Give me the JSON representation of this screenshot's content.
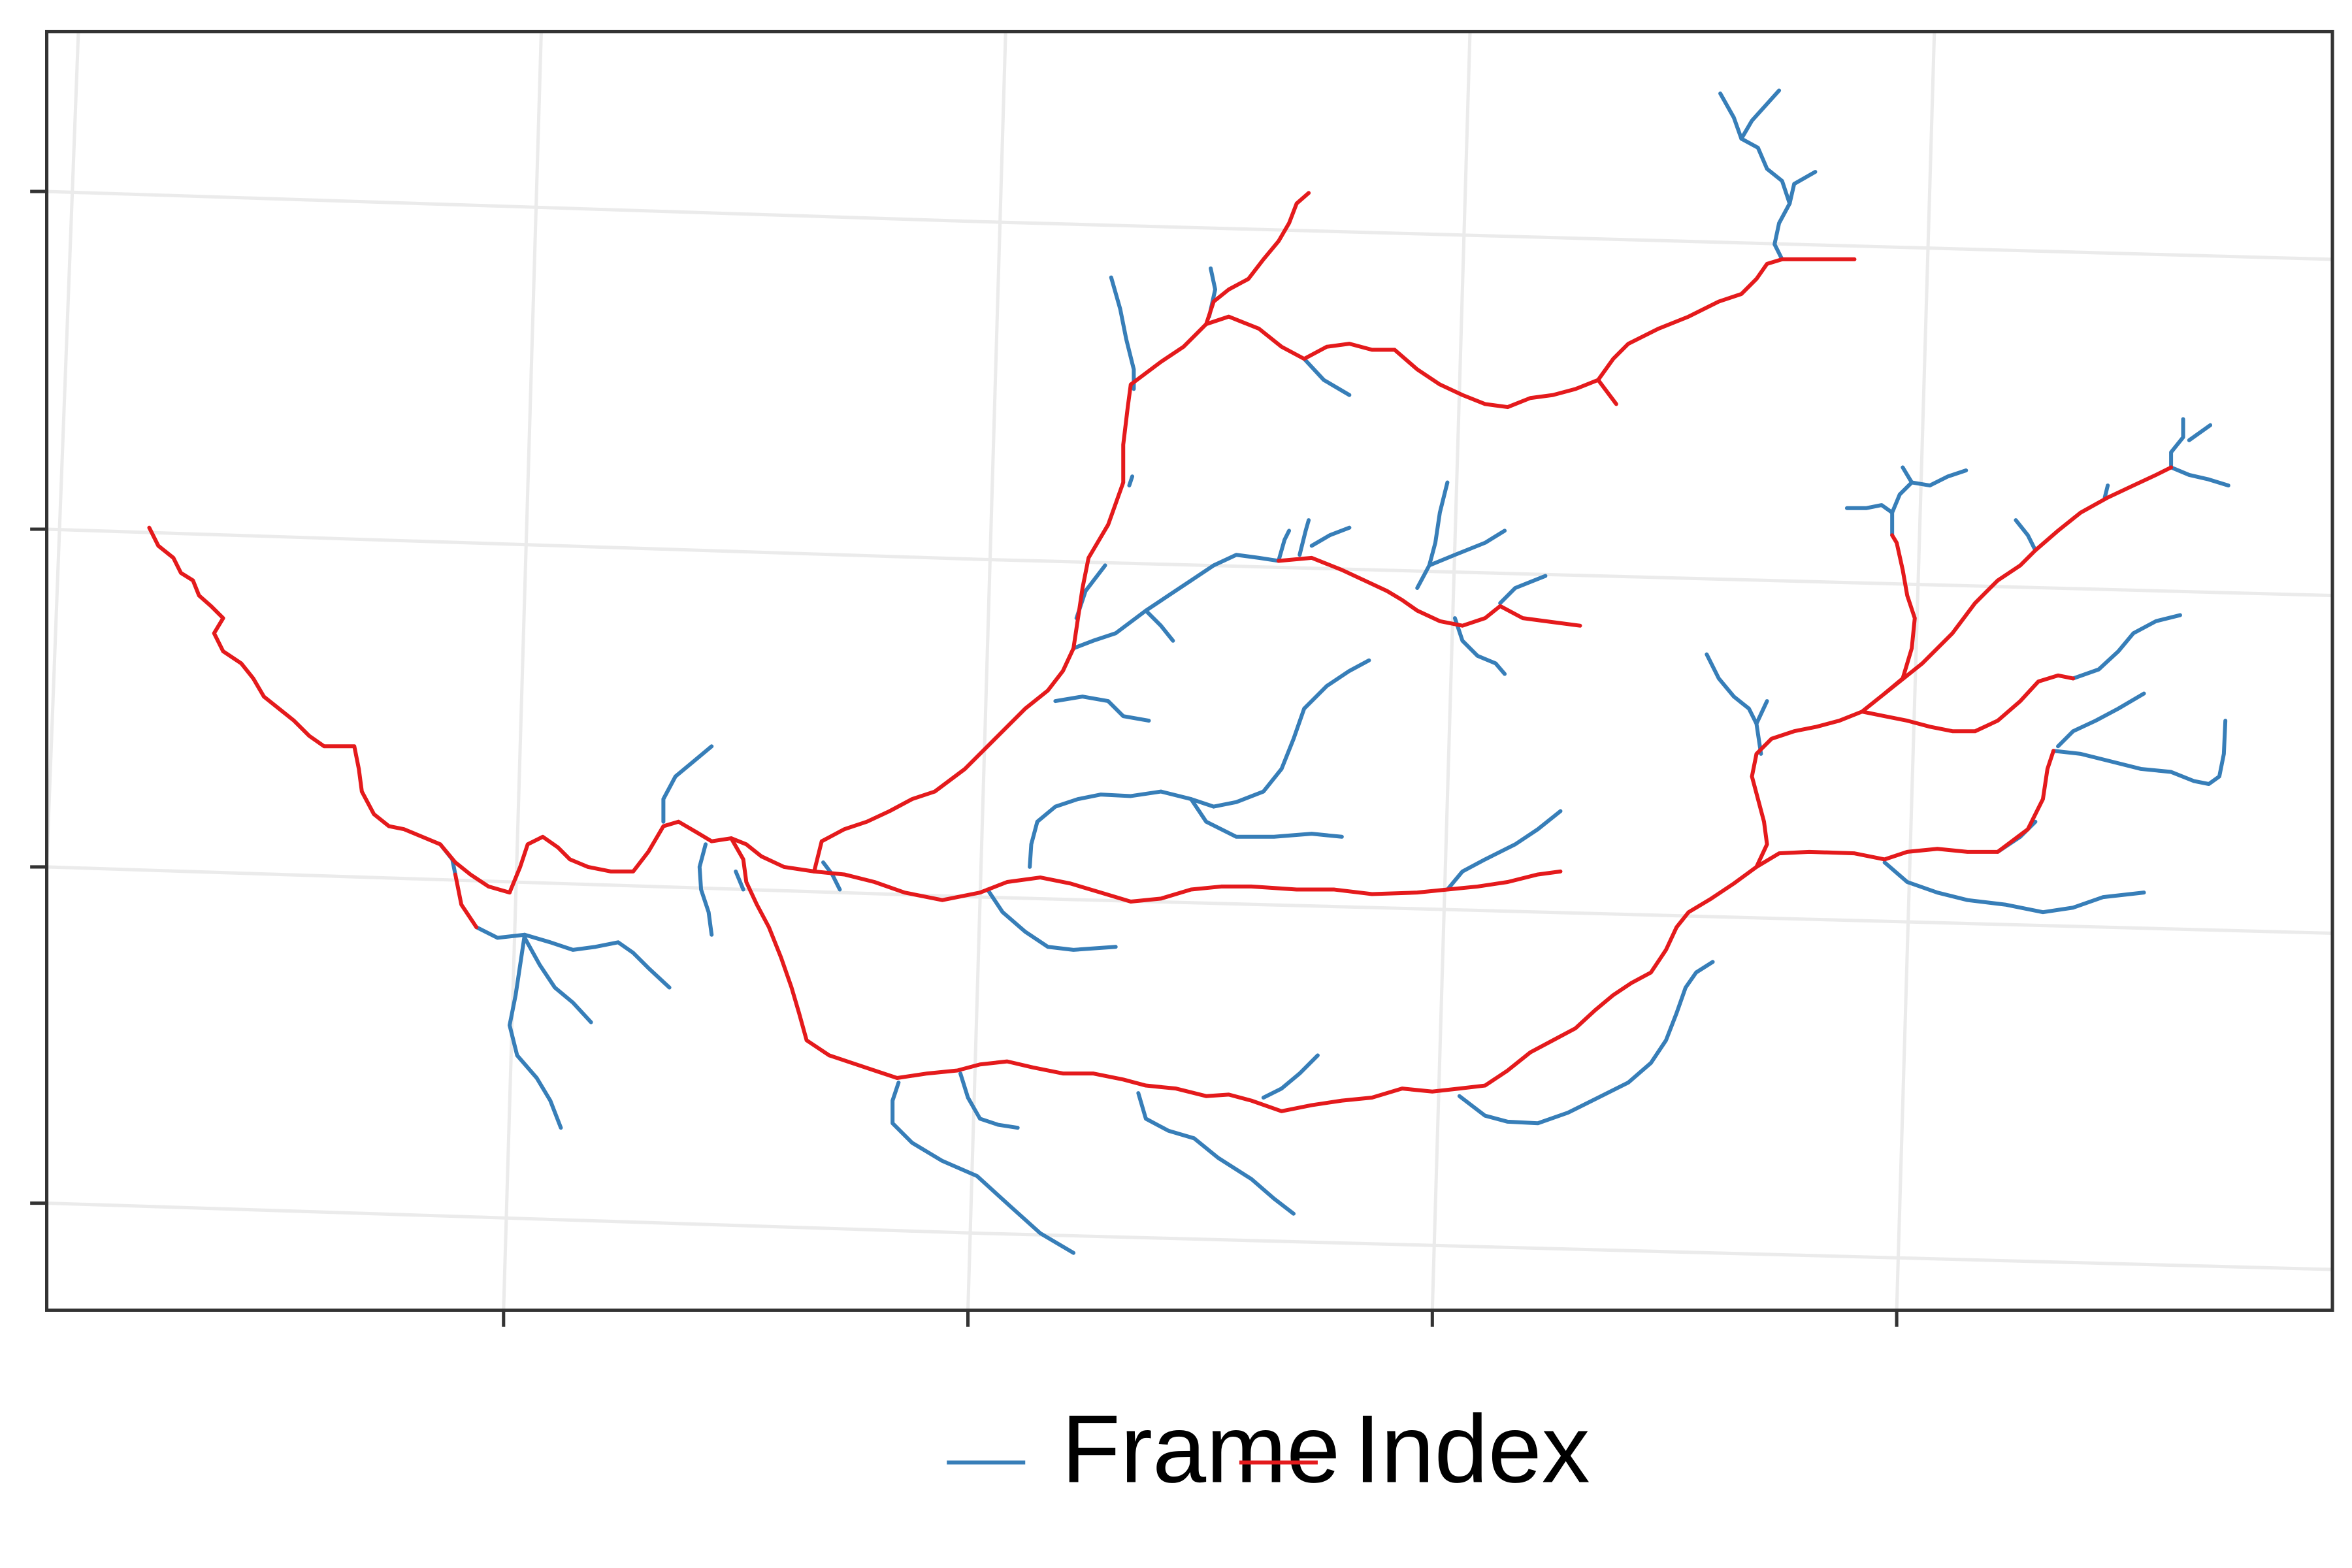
{
  "map": {
    "background": "#ffffff",
    "panel_border_color": "#333333",
    "graticule_color": "#ebebeb",
    "axis_tick_labels_visible": false
  },
  "colors": {
    "frame": "#377EB8",
    "index": "#E41A1C"
  },
  "legend": {
    "position": "bottom",
    "items": [
      {
        "key": "frame",
        "label": "Frame",
        "color": "#377EB8"
      },
      {
        "key": "index",
        "label": "Index",
        "color": "#E41A1C"
      }
    ]
  }
}
